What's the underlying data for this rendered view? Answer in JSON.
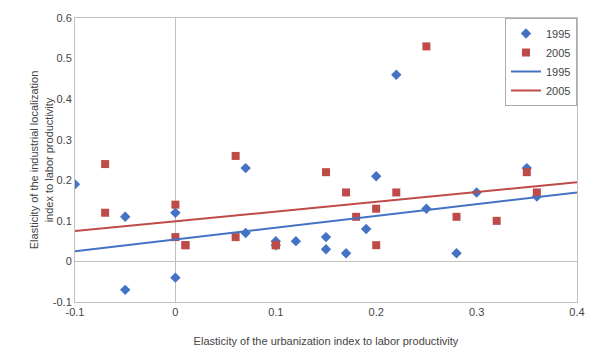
{
  "chart_data": {
    "type": "scatter",
    "xlabel": "Elasticity of the urbanization index to labor productivity",
    "ylabel": "Elasticity of the industrial localization\nindex to labor productivity",
    "series": [
      {
        "name": "1995",
        "type": "scatter",
        "marker": "diamond",
        "color": "#4472C4",
        "x": [
          -0.1,
          -0.05,
          -0.05,
          0.0,
          0.0,
          0.07,
          0.07,
          0.1,
          0.1,
          0.12,
          0.15,
          0.15,
          0.17,
          0.19,
          0.2,
          0.22,
          0.25,
          0.28,
          0.3,
          0.35,
          0.36
        ],
        "values": [
          0.19,
          -0.07,
          0.11,
          -0.04,
          0.12,
          0.23,
          0.07,
          0.05,
          0.04,
          0.05,
          0.06,
          0.03,
          0.02,
          0.08,
          0.21,
          0.46,
          0.13,
          0.02,
          0.17,
          0.23,
          0.16
        ]
      },
      {
        "name": "2005",
        "type": "scatter",
        "marker": "square",
        "color": "#BE4B48",
        "x": [
          -0.07,
          -0.07,
          0.0,
          0.0,
          0.01,
          0.01,
          0.06,
          0.06,
          0.1,
          0.1,
          0.15,
          0.17,
          0.18,
          0.2,
          0.2,
          0.22,
          0.25,
          0.28,
          0.32,
          0.35,
          0.36
        ],
        "values": [
          0.24,
          0.12,
          0.14,
          0.06,
          0.04,
          0.04,
          0.26,
          0.06,
          0.04,
          0.04,
          0.22,
          0.17,
          0.11,
          0.13,
          0.04,
          0.17,
          0.53,
          0.11,
          0.1,
          0.22,
          0.17
        ]
      },
      {
        "name": "1995",
        "type": "line",
        "line_style": "solid",
        "color": "#4472C4",
        "x": [
          -0.1,
          0.4
        ],
        "values": [
          0.025,
          0.17
        ]
      },
      {
        "name": "2005",
        "type": "line",
        "line_style": "solid",
        "color": "#BE4B48",
        "x": [
          -0.1,
          0.4
        ],
        "values": [
          0.075,
          0.195
        ]
      }
    ],
    "xlim": [
      -0.1,
      0.4
    ],
    "ylim": [
      -0.1,
      0.6
    ],
    "xticks": [
      -0.1,
      0.0,
      0.1,
      0.2,
      0.3,
      0.4
    ],
    "yticks": [
      -0.1,
      0.0,
      0.1,
      0.2,
      0.3,
      0.4,
      0.5,
      0.6
    ],
    "grid": false,
    "legend": "upper right"
  }
}
